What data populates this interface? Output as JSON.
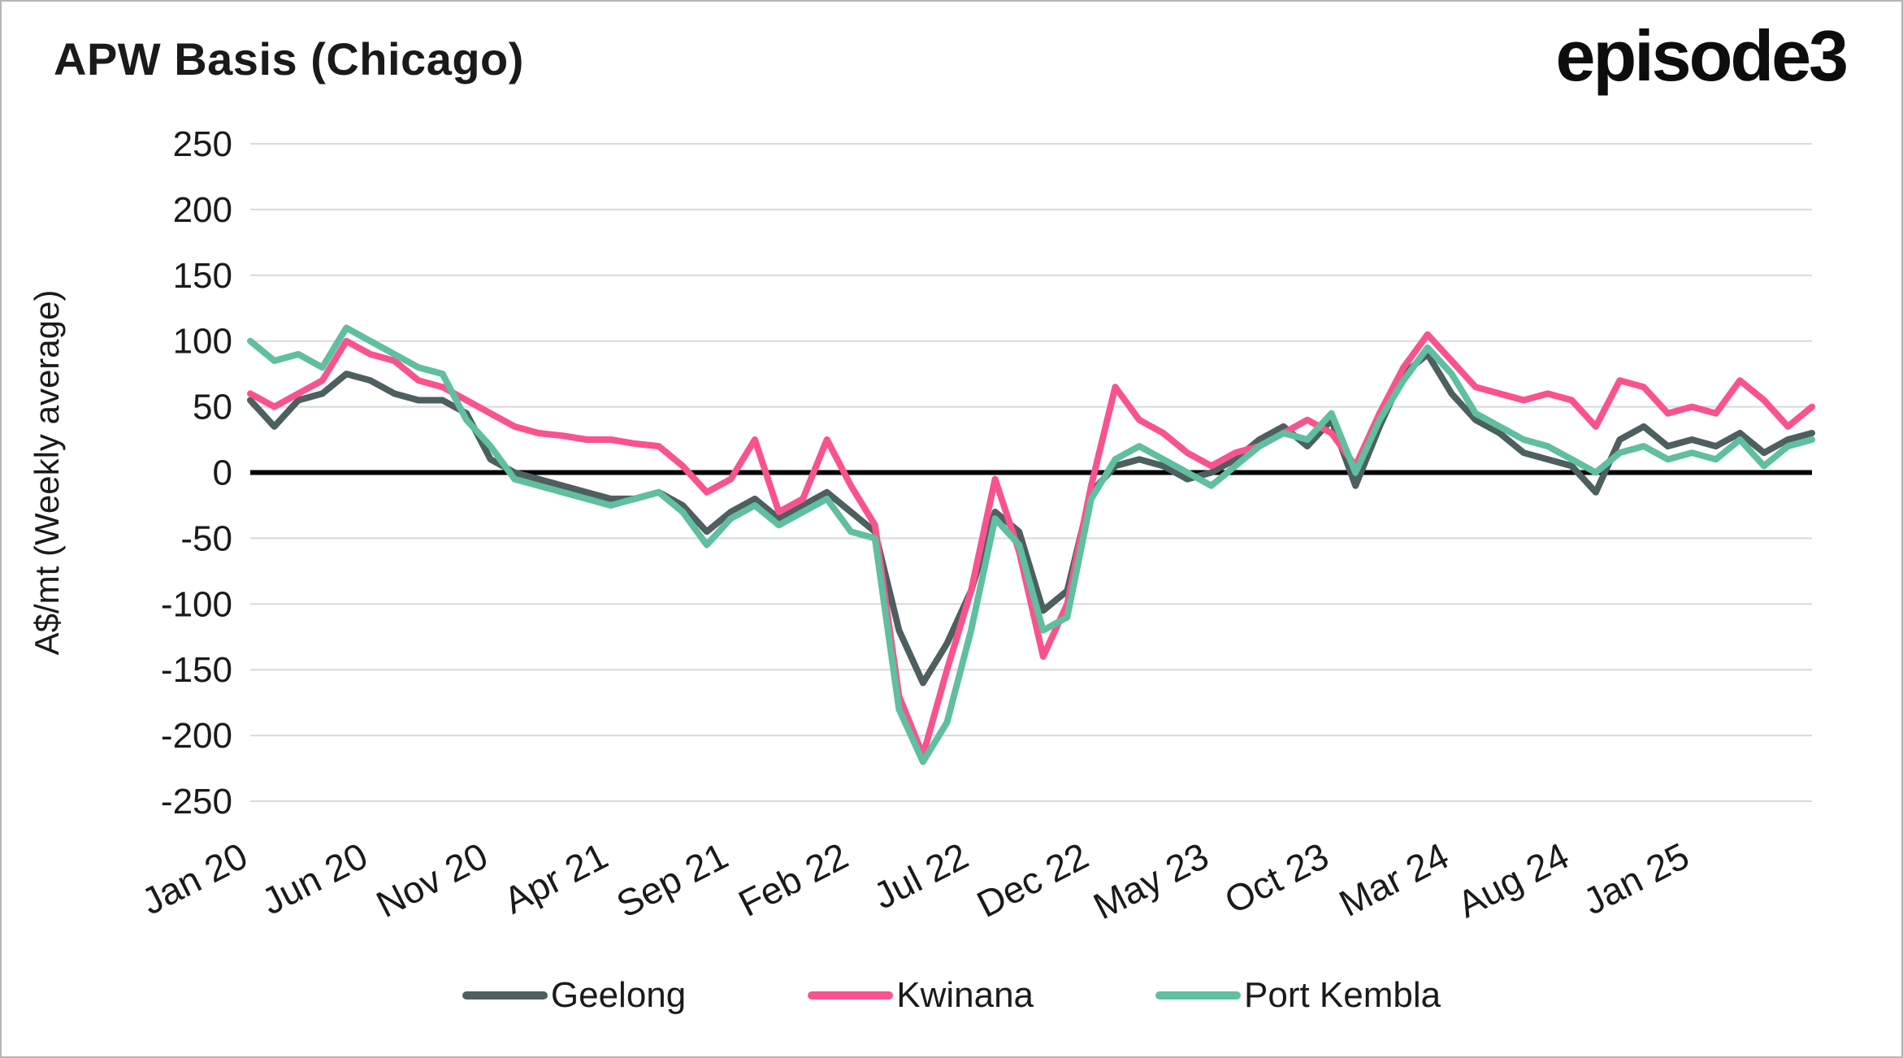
{
  "title": "APW Basis (Chicago)",
  "logo": "episode3",
  "colors": {
    "geelong": "#4d5f5f",
    "kwinana": "#f9538e",
    "port_kembla": "#5fbf9f",
    "grid": "#d9d9d9",
    "zero_line": "#000000",
    "text": "#1a1a1a"
  },
  "legend": [
    {
      "label": "Geelong",
      "color": "#4d5f5f"
    },
    {
      "label": "Kwinana",
      "color": "#f9538e"
    },
    {
      "label": "Port Kembla",
      "color": "#5fbf9f"
    }
  ],
  "chart_data": {
    "type": "line",
    "title": "APW Basis (Chicago)",
    "ylabel": "A$/mt (Weekly average)",
    "ylim": [
      -250,
      250
    ],
    "y_ticks": [
      250,
      200,
      150,
      100,
      50,
      0,
      -50,
      -100,
      -150,
      -200,
      -250
    ],
    "grid": "horizontal",
    "legend_position": "bottom",
    "x_start": "2020-01",
    "x_interval": "monthly",
    "n_points": 66,
    "x_tick_labels": [
      "Jan 20",
      "Jun 20",
      "Nov 20",
      "Apr 21",
      "Sep 21",
      "Feb 22",
      "Jul 22",
      "Dec 22",
      "May 23",
      "Oct 23",
      "Mar 24",
      "Aug 24",
      "Jan 25"
    ],
    "x_tick_indices": [
      0,
      5,
      10,
      15,
      20,
      25,
      30,
      35,
      40,
      45,
      50,
      55,
      60
    ],
    "series": [
      {
        "name": "Geelong",
        "color": "#4d5f5f",
        "values": [
          55,
          35,
          55,
          60,
          75,
          70,
          60,
          55,
          55,
          45,
          10,
          0,
          -5,
          -10,
          -15,
          -20,
          -20,
          -15,
          -25,
          -45,
          -30,
          -20,
          -35,
          -25,
          -15,
          -30,
          -45,
          -120,
          -160,
          -130,
          -90,
          -30,
          -45,
          -105,
          -90,
          -15,
          5,
          10,
          5,
          -5,
          0,
          10,
          25,
          35,
          20,
          40,
          -10,
          35,
          75,
          90,
          60,
          40,
          30,
          15,
          10,
          5,
          -15,
          25,
          35,
          20,
          25,
          20,
          30,
          15,
          25,
          30
        ]
      },
      {
        "name": "Kwinana",
        "color": "#f9538e",
        "values": [
          60,
          50,
          60,
          70,
          100,
          90,
          85,
          70,
          65,
          55,
          45,
          35,
          30,
          28,
          25,
          25,
          22,
          20,
          5,
          -15,
          -5,
          25,
          -30,
          -20,
          25,
          -10,
          -40,
          -170,
          -215,
          -150,
          -90,
          -5,
          -60,
          -140,
          -100,
          -10,
          65,
          40,
          30,
          15,
          5,
          15,
          20,
          30,
          40,
          30,
          5,
          45,
          80,
          105,
          85,
          65,
          60,
          55,
          60,
          55,
          35,
          70,
          65,
          45,
          50,
          45,
          70,
          55,
          35,
          50
        ]
      },
      {
        "name": "Port Kembla",
        "color": "#5fbf9f",
        "values": [
          100,
          85,
          90,
          80,
          110,
          100,
          90,
          80,
          75,
          40,
          20,
          -5,
          -10,
          -15,
          -20,
          -25,
          -20,
          -15,
          -30,
          -55,
          -35,
          -25,
          -40,
          -30,
          -20,
          -45,
          -50,
          -180,
          -220,
          -190,
          -120,
          -35,
          -55,
          -120,
          -110,
          -20,
          10,
          20,
          10,
          0,
          -10,
          5,
          20,
          30,
          25,
          45,
          0,
          40,
          70,
          95,
          75,
          45,
          35,
          25,
          20,
          10,
          0,
          15,
          20,
          10,
          15,
          10,
          25,
          5,
          20,
          25
        ]
      }
    ]
  }
}
